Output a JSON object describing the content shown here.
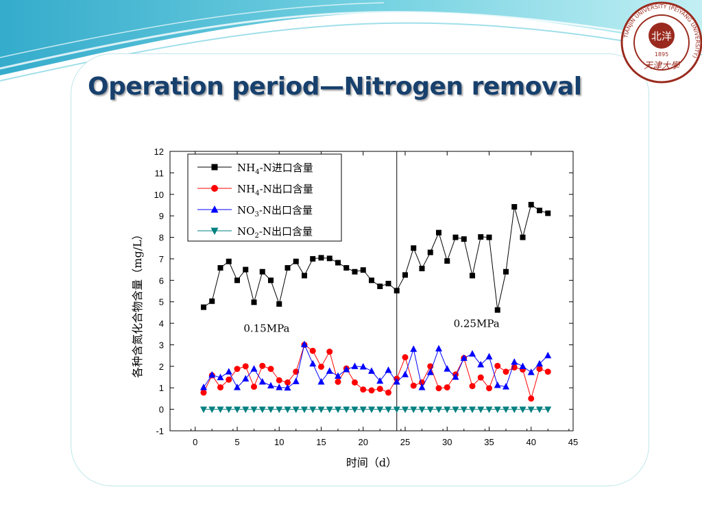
{
  "slide": {
    "title": "Operation period—Nitrogen removal",
    "logo": {
      "ring_text": "TIANJIN UNIVERSITY (PEIYANG UNIVERSITY)",
      "year": "1895",
      "calligraphy": "天津大學",
      "seal": "北洋"
    }
  },
  "colors": {
    "title": "#17406d",
    "series_black": "#000000",
    "series_red": "#ff0000",
    "series_blue": "#0000ff",
    "series_teal": "#008080",
    "logo": "#9a2a1e"
  },
  "chart_data": {
    "type": "line",
    "xlabel": "时间（d）",
    "ylabel": "各种含氮化合物含量（mg/L）",
    "xlim": [
      -3,
      45
    ],
    "ylim": [
      -1,
      12
    ],
    "xticks": [
      0,
      5,
      10,
      15,
      20,
      25,
      30,
      35,
      40,
      45
    ],
    "yticks": [
      -1,
      0,
      1,
      2,
      3,
      4,
      5,
      6,
      7,
      8,
      9,
      10,
      11,
      12
    ],
    "grid": false,
    "legend_position": "top-left",
    "x": [
      1,
      2,
      3,
      4,
      5,
      6,
      7,
      8,
      9,
      10,
      11,
      12,
      13,
      14,
      15,
      16,
      17,
      18,
      19,
      20,
      21,
      22,
      23,
      24,
      25,
      26,
      27,
      28,
      29,
      30,
      31,
      32,
      33,
      34,
      35,
      36,
      37,
      38,
      39,
      40,
      41,
      42
    ],
    "series": [
      {
        "name": "NH4-N进口含量",
        "name_parts": [
          "NH",
          "4",
          "-N进口含量"
        ],
        "marker": "square",
        "color": "#000000",
        "values": [
          4.75,
          5.03,
          6.58,
          6.88,
          6.0,
          6.5,
          4.98,
          6.4,
          6.0,
          4.9,
          6.58,
          6.88,
          6.22,
          7.0,
          7.05,
          7.02,
          6.82,
          6.58,
          6.4,
          6.48,
          6.0,
          5.72,
          5.85,
          5.52,
          6.25,
          7.5,
          6.55,
          7.3,
          8.22,
          6.9,
          8.0,
          7.92,
          6.22,
          8.02,
          8.0,
          4.62,
          6.4,
          9.42,
          8.0,
          9.52,
          9.25,
          9.12
        ]
      },
      {
        "name": "NH4-N出口含量",
        "name_parts": [
          "NH",
          "4",
          "-N出口含量"
        ],
        "marker": "circle",
        "color": "#ff0000",
        "values": [
          0.78,
          1.58,
          1.02,
          1.38,
          1.88,
          2.0,
          1.05,
          2.02,
          1.88,
          1.35,
          1.25,
          1.75,
          3.0,
          2.72,
          1.98,
          2.68,
          1.28,
          1.9,
          1.25,
          0.92,
          0.88,
          0.95,
          0.78,
          1.42,
          2.42,
          1.1,
          1.25,
          2.0,
          0.98,
          1.02,
          1.62,
          2.38,
          1.08,
          1.48,
          0.98,
          2.02,
          1.75,
          1.95,
          1.85,
          0.5,
          1.88,
          1.75
        ]
      },
      {
        "name": "NO3-N出口含量",
        "name_parts": [
          "NO",
          "3",
          "-N出口含量"
        ],
        "marker": "triangle-up",
        "color": "#0000ff",
        "values": [
          1.02,
          1.6,
          1.48,
          1.75,
          1.02,
          1.42,
          1.88,
          1.28,
          1.1,
          1.02,
          1.0,
          1.3,
          3.02,
          2.12,
          1.28,
          1.78,
          1.55,
          1.85,
          2.0,
          1.98,
          1.78,
          1.32,
          1.82,
          1.28,
          1.62,
          2.8,
          1.02,
          1.72,
          2.82,
          1.88,
          1.5,
          2.38,
          2.58,
          2.08,
          2.45,
          1.12,
          1.05,
          2.2,
          2.0,
          1.72,
          2.12,
          2.5
        ]
      },
      {
        "name": "NO2-N出口含量",
        "name_parts": [
          "NO",
          "2",
          "-N出口含量"
        ],
        "marker": "triangle-down",
        "color": "#008080",
        "values": [
          0,
          0,
          0,
          0,
          0,
          0,
          0,
          0,
          0,
          0,
          0,
          0,
          0,
          0,
          0,
          0,
          0,
          0,
          0,
          0,
          0,
          0,
          0,
          0,
          0,
          0,
          0,
          0,
          0,
          0,
          0,
          0,
          0,
          0,
          0,
          0,
          0,
          0,
          0,
          0,
          0,
          0
        ]
      }
    ],
    "vline_x": 24,
    "annotations": [
      {
        "text": "0.15MPa",
        "x": 8.5,
        "y": 3.6
      },
      {
        "text": "0.25MPa",
        "x": 33.5,
        "y": 3.82
      }
    ]
  }
}
